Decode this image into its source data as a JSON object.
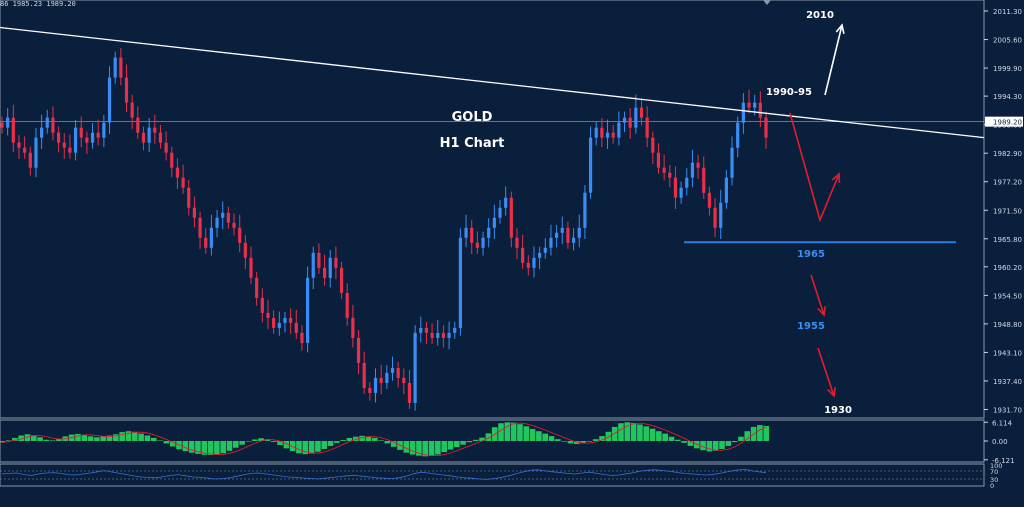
{
  "ohlc_readout": "86 1985.23 1989.20",
  "annotations": {
    "title": "GOLD",
    "subtitle": "H1 Chart",
    "target_up": "2010",
    "resistance": "1990-95",
    "support_1": "1965",
    "support_2": "1955",
    "target_down": "1930"
  },
  "colors": {
    "background": "#0a1f3c",
    "bull_candle": "#3a8df5",
    "bear_candle": "#e8304a",
    "trendline": "#ffffff",
    "support_line": "#2e7de6",
    "arrow_bearish": "#e01e2e",
    "arrow_bullish": "#ffffff",
    "osc_bars": "#22c55e",
    "osc_signal": "#e01e2e",
    "rsi_line": "#3a6fd8"
  },
  "chart_data": {
    "type": "candlestick",
    "symbol": "GOLD",
    "timeframe": "H1",
    "price_ticks": [
      "2011.30",
      "2005.60",
      "1999.90",
      "1994.30",
      "1988.60",
      "1982.90",
      "1977.20",
      "1971.50",
      "1965.80",
      "1960.20",
      "1954.50",
      "1948.80",
      "1943.10",
      "1937.40",
      "1931.70"
    ],
    "current_price": "1989.20",
    "ylim": [
      1930.0,
      2013.5
    ],
    "candles": [
      1988,
      1990,
      1985,
      1984,
      1983,
      1980,
      1986,
      1988,
      1990,
      1987,
      1985,
      1984,
      1983,
      1988,
      1986,
      1985,
      1987,
      1986,
      1989,
      1998,
      2002,
      1998,
      1993,
      1990,
      1987,
      1985,
      1988,
      1987,
      1985,
      1983,
      1980,
      1978,
      1976,
      1972,
      1970,
      1966,
      1964,
      1968,
      1970,
      1971,
      1969,
      1968,
      1965,
      1962,
      1958,
      1954,
      1951,
      1950,
      1948,
      1949,
      1950,
      1949,
      1947,
      1945,
      1958,
      1963,
      1960,
      1958,
      1962,
      1960,
      1955,
      1950,
      1946,
      1941,
      1936,
      1935,
      1938,
      1937,
      1939,
      1940,
      1938,
      1937,
      1933,
      1947,
      1948,
      1947,
      1946,
      1947,
      1946,
      1947,
      1948,
      1966,
      1968,
      1965,
      1964,
      1966,
      1968,
      1970,
      1972,
      1974,
      1966,
      1964,
      1961,
      1960,
      1962,
      1963,
      1964,
      1966,
      1967,
      1968,
      1965,
      1966,
      1968,
      1975,
      1986,
      1988,
      1986,
      1987,
      1986,
      1989,
      1990,
      1988,
      1992,
      1990,
      1986,
      1983,
      1980,
      1979,
      1978,
      1974,
      1976,
      1978,
      1981,
      1980,
      1975,
      1972,
      1968,
      1973,
      1978,
      1984,
      1989,
      1993,
      1992,
      1993,
      1990,
      1986
    ],
    "trendline": {
      "start_price": 2008.0,
      "end_price": 1986.0
    },
    "horizontal_levels": [
      1965
    ],
    "projection_points": [
      {
        "label": "1990-95",
        "price": 1992.5
      },
      {
        "label": "1965",
        "price": 1965
      },
      {
        "label": "1955",
        "price": 1955
      },
      {
        "label": "1930",
        "price": 1930
      },
      {
        "label": "2010",
        "price": 2010
      }
    ],
    "oscillator": {
      "ticks": [
        "6.114",
        "0.00",
        "-6.121"
      ],
      "values": [
        -0.5,
        0.2,
        1.0,
        1.8,
        2.2,
        1.9,
        1.2,
        0.4,
        0.2,
        0.8,
        1.5,
        2.1,
        2.3,
        2.0,
        1.5,
        1.2,
        1.5,
        1.8,
        2.2,
        2.9,
        3.2,
        3.0,
        2.4,
        1.8,
        1.0,
        0.2,
        -0.8,
        -1.8,
        -2.7,
        -3.3,
        -3.8,
        -4.2,
        -4.5,
        -4.6,
        -4.4,
        -4.0,
        -3.2,
        -2.2,
        -1.2,
        -0.2,
        0.5,
        0.9,
        0.6,
        -0.3,
        -1.3,
        -2.4,
        -3.3,
        -4.0,
        -4.3,
        -4.1,
        -3.5,
        -2.6,
        -1.6,
        -0.6,
        0.3,
        1.0,
        1.4,
        1.7,
        1.5,
        1.0,
        0.2,
        -0.8,
        -1.9,
        -2.9,
        -3.8,
        -4.4,
        -4.8,
        -5.0,
        -4.9,
        -4.4,
        -3.6,
        -2.8,
        -2.0,
        -1.2,
        -0.4,
        0.4,
        1.1,
        2.5,
        4.5,
        5.8,
        6.1,
        6.0,
        5.5,
        4.8,
        3.9,
        3.2,
        2.4,
        1.6,
        0.6,
        -0.2,
        -0.8,
        -1.0,
        -0.7,
        -0.2,
        0.6,
        1.6,
        3.0,
        4.6,
        5.8,
        6.1,
        5.9,
        5.4,
        4.8,
        4.0,
        3.2,
        2.4,
        1.4,
        0.4,
        -0.6,
        -1.6,
        -2.4,
        -3.0,
        -3.4,
        -3.2,
        -2.6,
        -1.6,
        -0.4,
        1.4,
        3.2,
        4.6,
        5.2,
        4.9
      ]
    },
    "rsi": {
      "ticks": [
        "100",
        "70",
        "30",
        "0"
      ],
      "values": [
        55,
        58,
        60,
        52,
        48,
        55,
        60,
        62,
        58,
        52,
        50,
        55,
        60,
        66,
        72,
        65,
        58,
        52,
        45,
        40,
        38,
        36,
        42,
        48,
        52,
        46,
        40,
        38,
        34,
        30,
        32,
        36,
        44,
        52,
        58,
        60,
        55,
        50,
        45,
        40,
        38,
        35,
        33,
        30,
        34,
        38,
        42,
        46,
        48,
        44,
        40,
        36,
        34,
        32,
        36,
        44,
        56,
        64,
        60,
        55,
        50,
        46,
        40,
        36,
        34,
        30,
        28,
        32,
        38,
        46,
        56,
        66,
        74,
        76,
        70,
        66,
        62,
        58,
        55,
        60,
        64,
        58,
        52,
        48,
        50,
        56,
        62,
        70,
        74,
        76,
        72,
        68,
        62,
        58,
        55,
        52,
        50,
        54,
        60,
        68,
        74,
        78,
        72,
        66,
        62
      ]
    }
  }
}
